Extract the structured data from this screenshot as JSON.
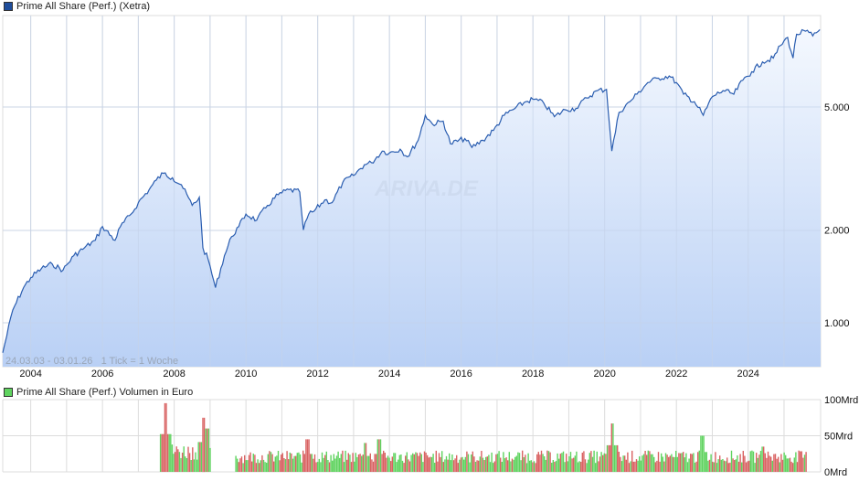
{
  "main_legend": {
    "label": "Prime All Share (Perf.) (Xetra)",
    "color": "#1f4e9c"
  },
  "volume_legend": {
    "label": "Prime All Share (Perf.) Volumen in Euro",
    "color": "#5fd35f"
  },
  "range_label": "24.03.03 - 03.01.26   1 Tick = 1 Woche",
  "watermark": "ARIVA.DE",
  "colors": {
    "line": "#2a5db0",
    "fill_top": "#f4f8fe",
    "fill_bottom": "#b9d0f5",
    "grid": "#dcdcdc",
    "vol_up": "#5fd35f",
    "vol_down": "#d96262"
  },
  "chart_data": [
    {
      "type": "area",
      "title": "Prime All Share (Perf.) (Xetra)",
      "xlabel": "",
      "ylabel": "",
      "yscale": "log",
      "x_tick_labels": [
        "2004",
        "2006",
        "2008",
        "2010",
        "2012",
        "2014",
        "2016",
        "2018",
        "2020",
        "2022",
        "2024"
      ],
      "y_tick_labels": [
        "1.000",
        "2.000",
        "5.000"
      ],
      "y_ticks": [
        1000,
        2000,
        5000
      ],
      "ylim": [
        720,
        9500
      ],
      "date_range": "24.03.03 - 03.01.26",
      "tick": "1 Tick = 1 Woche",
      "grid": true,
      "x": [
        2003.22,
        2003.5,
        2003.8,
        2004.0,
        2004.3,
        2004.6,
        2004.9,
        2005.2,
        2005.5,
        2005.8,
        2006.0,
        2006.35,
        2006.5,
        2006.8,
        2007.0,
        2007.3,
        2007.5,
        2007.7,
        2007.95,
        2008.2,
        2008.5,
        2008.7,
        2008.8,
        2008.95,
        2009.15,
        2009.4,
        2009.6,
        2009.8,
        2010.0,
        2010.3,
        2010.6,
        2010.9,
        2011.2,
        2011.5,
        2011.6,
        2011.75,
        2011.9,
        2012.2,
        2012.4,
        2012.7,
        2013.0,
        2013.3,
        2013.5,
        2013.8,
        2014.0,
        2014.3,
        2014.5,
        2014.8,
        2015.0,
        2015.2,
        2015.5,
        2015.7,
        2016.1,
        2016.3,
        2016.6,
        2016.9,
        2017.2,
        2017.5,
        2017.8,
        2018.0,
        2018.3,
        2018.6,
        2018.9,
        2019.2,
        2019.5,
        2019.8,
        2020.05,
        2020.2,
        2020.4,
        2020.7,
        2020.9,
        2021.2,
        2021.5,
        2021.8,
        2022.0,
        2022.2,
        2022.5,
        2022.75,
        2023.0,
        2023.3,
        2023.6,
        2023.85,
        2024.1,
        2024.4,
        2024.7,
        2024.9,
        2025.1,
        2025.25,
        2025.35,
        2025.6,
        2025.8,
        2026.0
      ],
      "values": [
        800,
        1100,
        1300,
        1400,
        1500,
        1550,
        1480,
        1650,
        1750,
        1850,
        2050,
        1850,
        2050,
        2250,
        2450,
        2700,
        2900,
        3050,
        2950,
        2800,
        2400,
        2550,
        1750,
        1600,
        1300,
        1650,
        1900,
        2050,
        2250,
        2150,
        2400,
        2600,
        2700,
        2650,
        2000,
        2250,
        2300,
        2500,
        2450,
        2850,
        3000,
        3250,
        3300,
        3600,
        3550,
        3650,
        3450,
        3900,
        4700,
        4400,
        4500,
        3800,
        3950,
        3700,
        3900,
        4200,
        4700,
        4950,
        5200,
        5300,
        5150,
        4650,
        4900,
        4950,
        5350,
        5650,
        5700,
        3600,
        4800,
        5200,
        5500,
        6000,
        6200,
        6300,
        6000,
        5500,
        5200,
        4700,
        5400,
        5650,
        5500,
        6100,
        6500,
        7000,
        7200,
        7900,
        8400,
        7200,
        8600,
        8800,
        8500,
        8900
      ]
    },
    {
      "type": "bar",
      "title": "Prime All Share (Perf.) Volumen in Euro",
      "y_tick_labels": [
        "0Mrd",
        "50Mrd",
        "100Mrd"
      ],
      "ylim": [
        0,
        100
      ],
      "unit": "Mrd EUR",
      "series_note": "green = up week, red = down week",
      "segments": [
        {
          "from": 2007.6,
          "to": 2009.0,
          "base": 30,
          "peaks": [
            [
              2007.75,
              95
            ],
            [
              2008.8,
              75
            ],
            [
              2008.9,
              60
            ]
          ]
        },
        {
          "from": 2009.7,
          "to": 2025.6,
          "base": 22,
          "peaks": [
            [
              2011.7,
              45
            ],
            [
              2013.3,
              40
            ],
            [
              2013.7,
              45
            ],
            [
              2020.2,
              67
            ],
            [
              2022.7,
              50
            ],
            [
              2024.4,
              35
            ]
          ]
        }
      ]
    }
  ]
}
